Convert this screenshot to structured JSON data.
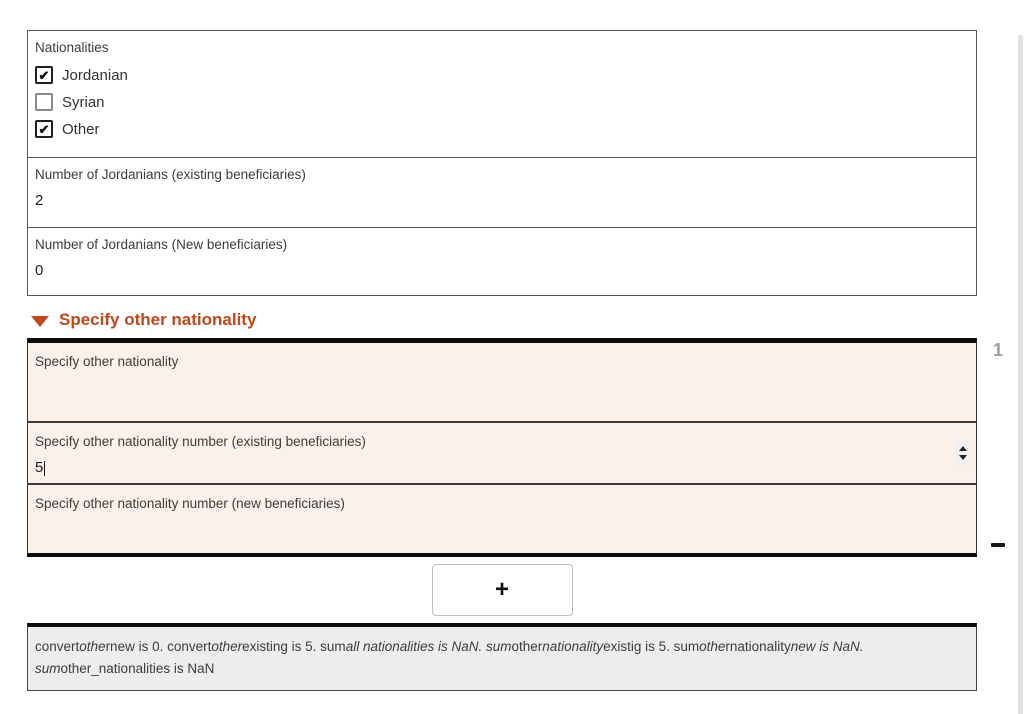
{
  "panels": {
    "nationalities": {
      "label": "Nationalities",
      "options": [
        {
          "label": "Jordanian",
          "checked": true
        },
        {
          "label": "Syrian",
          "checked": false
        },
        {
          "label": "Other",
          "checked": true
        }
      ]
    },
    "jordanians_existing": {
      "label": "Number of Jordanians (existing beneficiaries)",
      "value": "2"
    },
    "jordanians_new": {
      "label": "Number of Jordanians (New beneficiaries)",
      "value": "0"
    }
  },
  "repeat_section": {
    "header": "Specify other nationality",
    "instance_number": "1",
    "fields": {
      "other_nationality": {
        "label": "Specify other nationality",
        "value": ""
      },
      "other_existing": {
        "label": "Specify other nationality number (existing beneficiaries)",
        "value": "5"
      },
      "other_new": {
        "label": "Specify other nationality number (new beneficiaries)",
        "value": ""
      }
    },
    "add_button_label": "+",
    "remove_button_label": "−"
  },
  "note": {
    "segments": [
      {
        "text": "convert",
        "italic": false
      },
      {
        "text": "othe",
        "italic": true
      },
      {
        "text": "rnew is 0. convert",
        "italic": false
      },
      {
        "text": "other",
        "italic": true
      },
      {
        "text": "existing is 5. sum",
        "italic": false
      },
      {
        "text": "all nationalities is NaN. sum",
        "italic": true
      },
      {
        "text": "other",
        "italic": false
      },
      {
        "text": "nationality",
        "italic": true
      },
      {
        "text": "existig is 5. sum",
        "italic": false
      },
      {
        "text": "othe",
        "italic": true
      },
      {
        "text": "rnationality",
        "italic": false
      },
      {
        "text": "new is NaN. sum",
        "italic": true
      },
      {
        "text": "other_nationalities is NaN",
        "italic": false
      }
    ]
  },
  "colors": {
    "accent": "#c3471b",
    "field_bg": "#fcf1e9",
    "note_bg": "#ededed"
  }
}
